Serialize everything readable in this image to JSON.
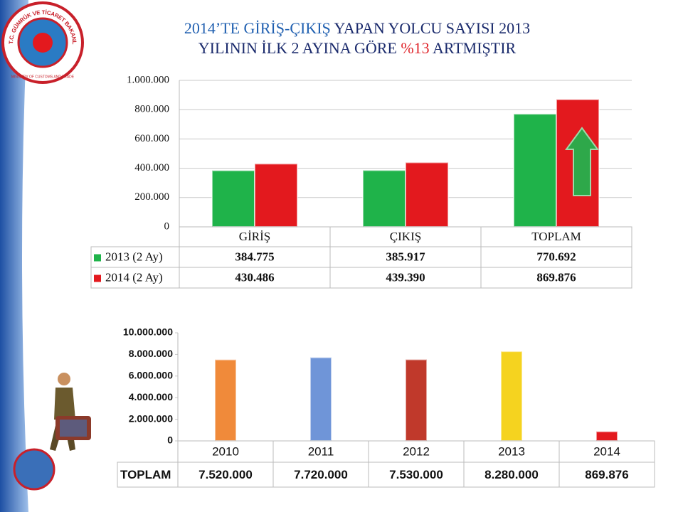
{
  "logo": {
    "text": "T.C. GÜMRÜK VE TİCARET BAKANLIĞI",
    "subtext": "MINISTRY OF CUSTOMS AND TRADE"
  },
  "chart_data": [
    {
      "type": "bar",
      "title": [
        [
          {
            "text": "2014’TE GİRİŞ-ÇIKIŞ",
            "color": "#1f5fb0"
          },
          {
            "text": " YAPAN YOLCU  SAYISI 2013",
            "color": "#1a2a6c"
          }
        ],
        [
          {
            "text": "YILININ İLK 2 AYINA  GÖRE ",
            "color": "#1a2a6c"
          },
          {
            "text": "%13",
            "color": "#e0252b"
          },
          {
            "text": " ARTMIŞTIR",
            "color": "#1a2a6c"
          }
        ]
      ],
      "categories": [
        "GİRİŞ",
        "ÇIKIŞ",
        "TOPLAM"
      ],
      "series": [
        {
          "name": "2013 (2 Ay)",
          "color": "#1fb34a",
          "values": [
            384775,
            385917,
            770692
          ],
          "value_labels": [
            "384.775",
            "385.917",
            "770.692"
          ]
        },
        {
          "name": "2014 (2 Ay)",
          "color": "#e3191e",
          "values": [
            430486,
            439390,
            869876
          ],
          "value_labels": [
            "430.486",
            "439.390",
            "869.876"
          ]
        }
      ],
      "ylim": [
        0,
        1000000
      ],
      "yticks": [
        0,
        {
          "value": 200000,
          "label": "200.000"
        },
        {
          "value": 400000,
          "label": "400.000"
        },
        {
          "value": 600000,
          "label": "600.000"
        },
        {
          "value": 800000,
          "label": "800.000"
        },
        {
          "value": 1000000,
          "label": "1.000.000"
        }
      ],
      "grid": true
    },
    {
      "type": "bar",
      "categories": [
        "2010",
        "2011",
        "2012",
        "2013",
        "2014"
      ],
      "series": [
        {
          "name": "TOPLAM",
          "colors": [
            "#f08a3a",
            "#6f95d8",
            "#c0392b",
            "#f5d31f",
            "#e3191e"
          ],
          "values": [
            7520000,
            7720000,
            7530000,
            8280000,
            869876
          ],
          "value_labels": [
            "7.520.000",
            "7.720.000",
            "7.530.000",
            "8.280.000",
            "869.876"
          ]
        }
      ],
      "ylim": [
        0,
        10000000
      ],
      "yticks": [
        0,
        {
          "value": 2000000,
          "label": "2.000.000"
        },
        {
          "value": 4000000,
          "label": "4.000.000"
        },
        {
          "value": 6000000,
          "label": "6.000.000"
        },
        {
          "value": 8000000,
          "label": "8.000.000"
        },
        {
          "value": 10000000,
          "label": "10.000.000"
        }
      ],
      "grid": false
    }
  ]
}
